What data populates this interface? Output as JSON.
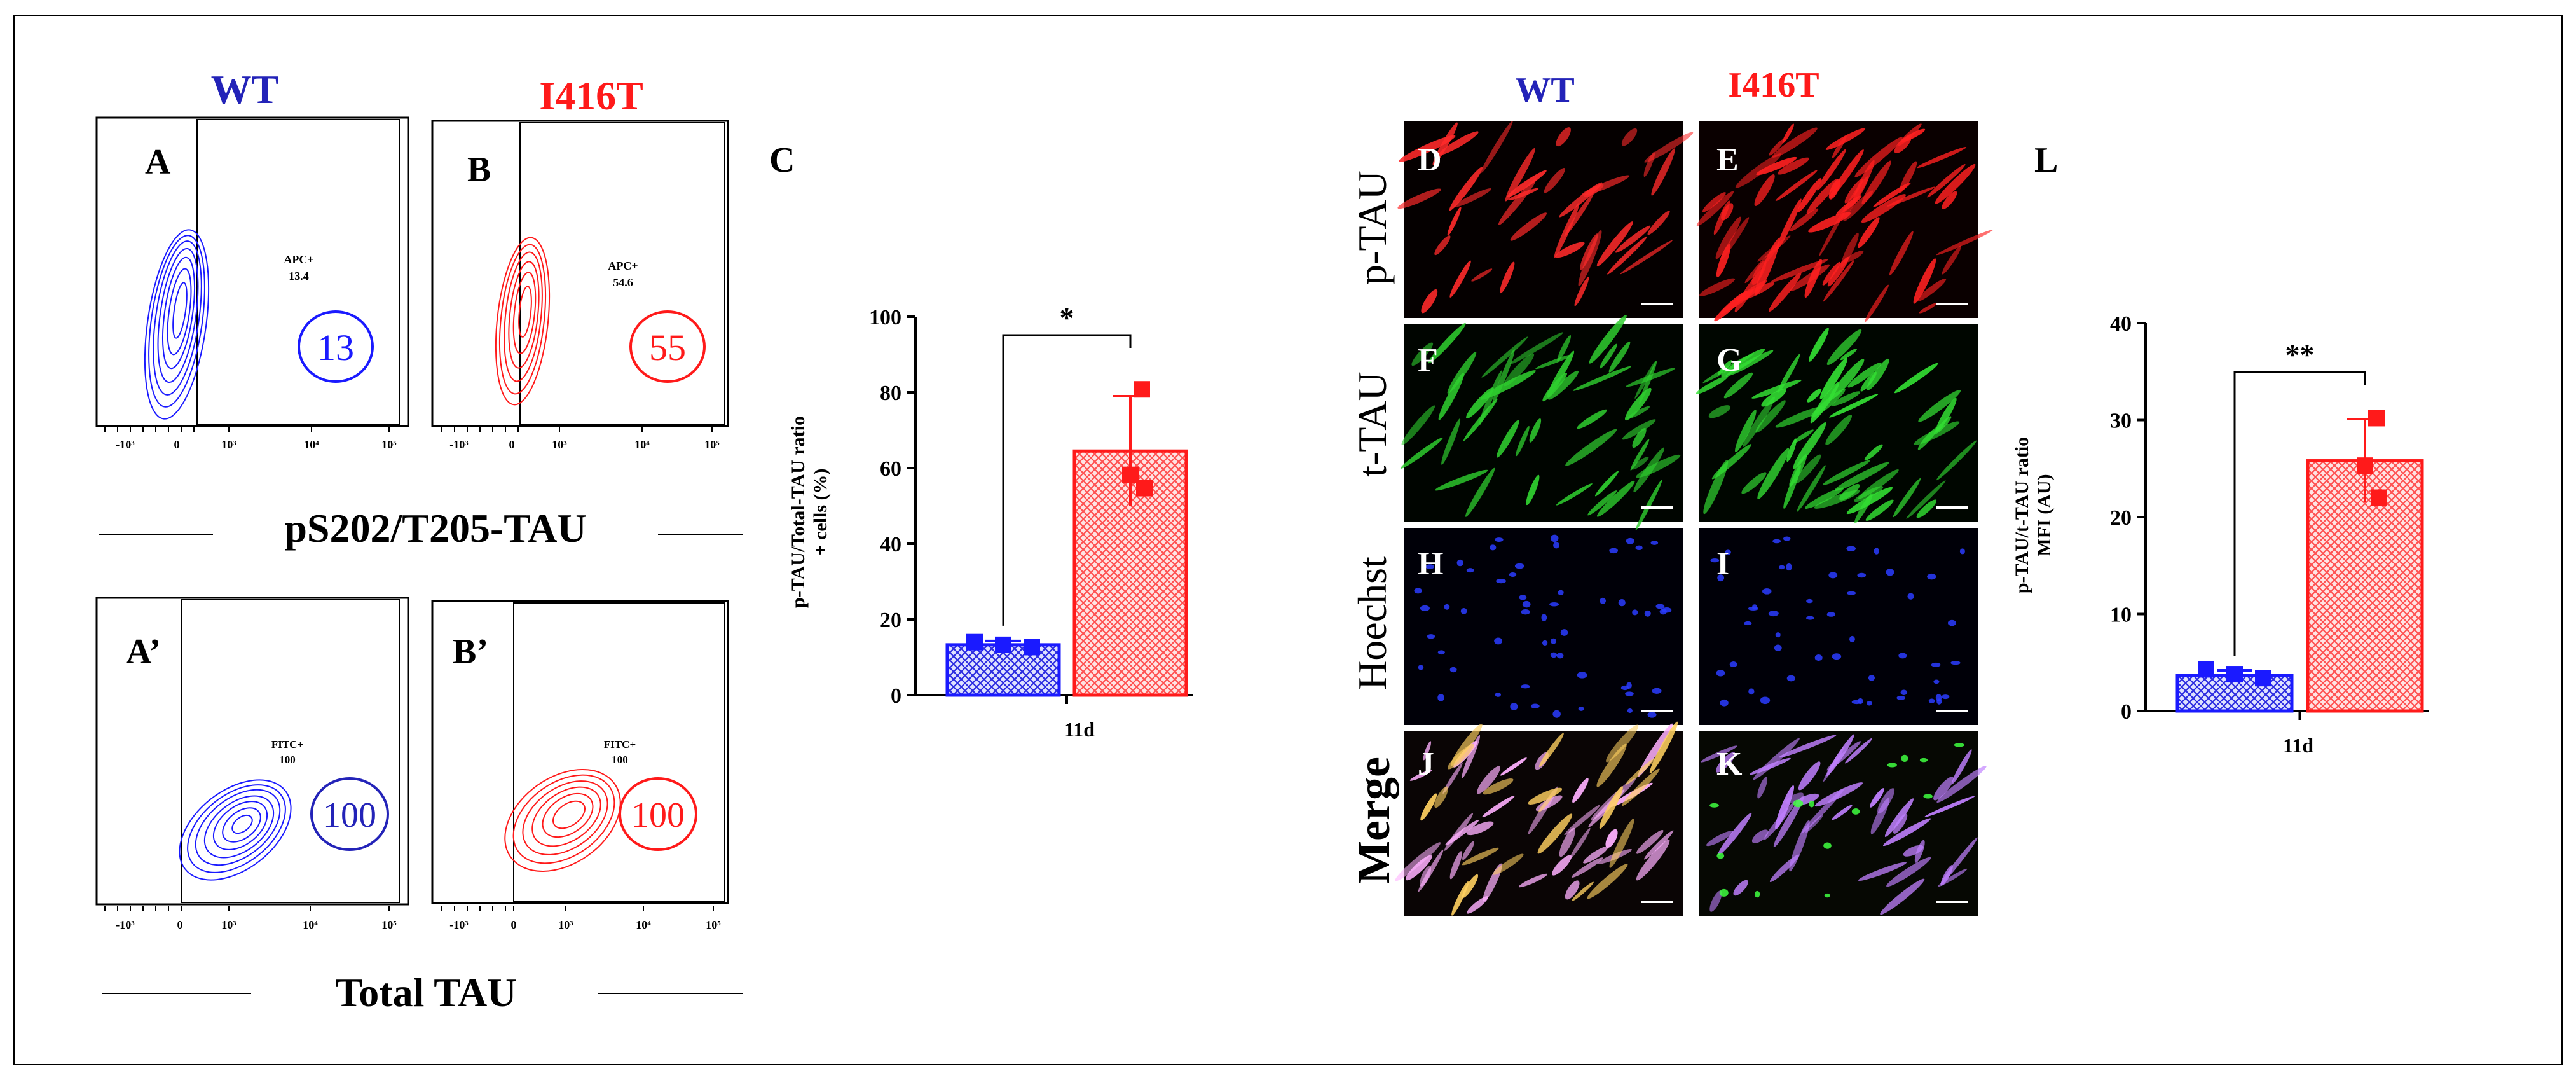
{
  "colors": {
    "wt": "#1a1aff",
    "i416t": "#ff1a1a",
    "wt_dark": "#2323b8",
    "axis": "#000000"
  },
  "flow": {
    "wt_label": "WT",
    "i416t_label": "I416T",
    "tick_labels": [
      "-10³",
      "0",
      "10³",
      "10⁴",
      "10⁵"
    ],
    "ptau_caption": "pS202/T205-TAU",
    "total_caption": "Total TAU",
    "panels": [
      {
        "letter": "A",
        "gate": "APC+",
        "gate_value": "13.4",
        "circle": "13"
      },
      {
        "letter": "B",
        "gate": "APC+",
        "gate_value": "54.6",
        "circle": "55"
      },
      {
        "letter": "A’",
        "gate": "FITC+",
        "gate_value": "100",
        "circle": "100"
      },
      {
        "letter": "B’",
        "gate": "FITC+",
        "gate_value": "100",
        "circle": "100"
      }
    ]
  },
  "micro": {
    "wt_label": "WT",
    "i416t_label": "I416T",
    "rows": [
      "p-TAU",
      "t-TAU",
      "Hoechst",
      "Merge"
    ],
    "letters_wt": [
      "D",
      "F",
      "H",
      "J"
    ],
    "letters_i416t": [
      "E",
      "G",
      "I",
      "K"
    ]
  },
  "chart_data": [
    {
      "panel": "C",
      "type": "bar",
      "categories": [
        "11d"
      ],
      "ylabel": "p-TAU/Total-TAU ratio + cells (%)",
      "ylabel_line1": "p-TAU/Total-TAU ratio",
      "ylabel_line2": "+ cells (%)",
      "ylim": [
        0,
        100
      ],
      "yticks": [
        0,
        20,
        40,
        60,
        80,
        100
      ],
      "significance": "*",
      "series": [
        {
          "name": "WT",
          "mean": 13.3,
          "error": 1.0,
          "points": [
            14.0,
            13.3,
            12.7
          ]
        },
        {
          "name": "I416T",
          "mean": 64.5,
          "error": 14.5,
          "points": [
            80.8,
            58.2,
            54.7
          ]
        }
      ]
    },
    {
      "panel": "L",
      "type": "bar",
      "categories": [
        "11d"
      ],
      "ylabel": "p-TAU/t-TAU ratio MFI (AU)",
      "ylabel_line1": "p-TAU/t-TAU ratio",
      "ylabel_line2": "MFI (AU)",
      "ylim": [
        0,
        40
      ],
      "yticks": [
        0,
        10,
        20,
        30,
        40
      ],
      "significance": "**",
      "series": [
        {
          "name": "WT",
          "mean": 3.7,
          "error": 0.5,
          "points": [
            4.3,
            3.8,
            3.4
          ]
        },
        {
          "name": "I416T",
          "mean": 25.8,
          "error": 4.3,
          "points": [
            30.2,
            25.3,
            22.0
          ]
        }
      ]
    }
  ]
}
